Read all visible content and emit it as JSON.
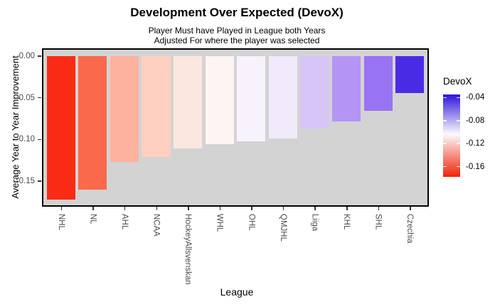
{
  "title": "Development Over Expected (DevoX)",
  "subtitle": {
    "line1": "Player Must have Played in League both Years",
    "line2": "Adjusted For where the player was selected"
  },
  "chart_data": {
    "type": "bar",
    "orientation": "vertical",
    "title": "Development Over Expected (DevoX)",
    "subtitle": [
      "Player Must have Played in League both Years",
      "Adjusted For where the player was selected"
    ],
    "xlabel": "League",
    "ylabel": "Average Year to Year Improvement",
    "categories": [
      "NHL",
      "NL",
      "AHL",
      "NCAA",
      "HockeyAllsvenskan",
      "WHL",
      "OHL",
      "QMJHL",
      "Liiga",
      "KHL",
      "SHL",
      "Czechia"
    ],
    "values": [
      -0.172,
      -0.16,
      -0.127,
      -0.121,
      -0.111,
      -0.106,
      -0.102,
      -0.099,
      -0.087,
      -0.078,
      -0.066,
      -0.044
    ],
    "bar_colors": [
      "#F92B14",
      "#FA694B",
      "#FDB29D",
      "#FDD0C1",
      "#FCE7DE",
      "#FEF4F1",
      "#F7F2FB",
      "#F0EAFA",
      "#D7C5F7",
      "#B495F5",
      "#9873F2",
      "#4A2BE5"
    ],
    "ylim": [
      -0.18,
      0.009
    ],
    "yticks": [
      0.0,
      -0.05,
      -0.1,
      -0.15
    ],
    "ytick_labels": [
      "0.00",
      "-0.05",
      "-0.10",
      "-0.15"
    ],
    "grid": false,
    "panel_bg": "#D3D3D3",
    "panel_border": "#000000",
    "legend": {
      "title": "DevoX",
      "position": "right",
      "style": "colorbar",
      "tick_labels": [
        "-0.04",
        "-0.08",
        "-0.12",
        "-0.16"
      ],
      "tick_values": [
        -0.04,
        -0.08,
        -0.12,
        -0.16
      ],
      "value_top": -0.0346,
      "value_bottom": -0.1777,
      "gradient_top": "#2E14DA",
      "gradient_mid": "#FBFAFE",
      "gradient_bottom": "#F02406",
      "mid_position_pct": 48
    }
  }
}
